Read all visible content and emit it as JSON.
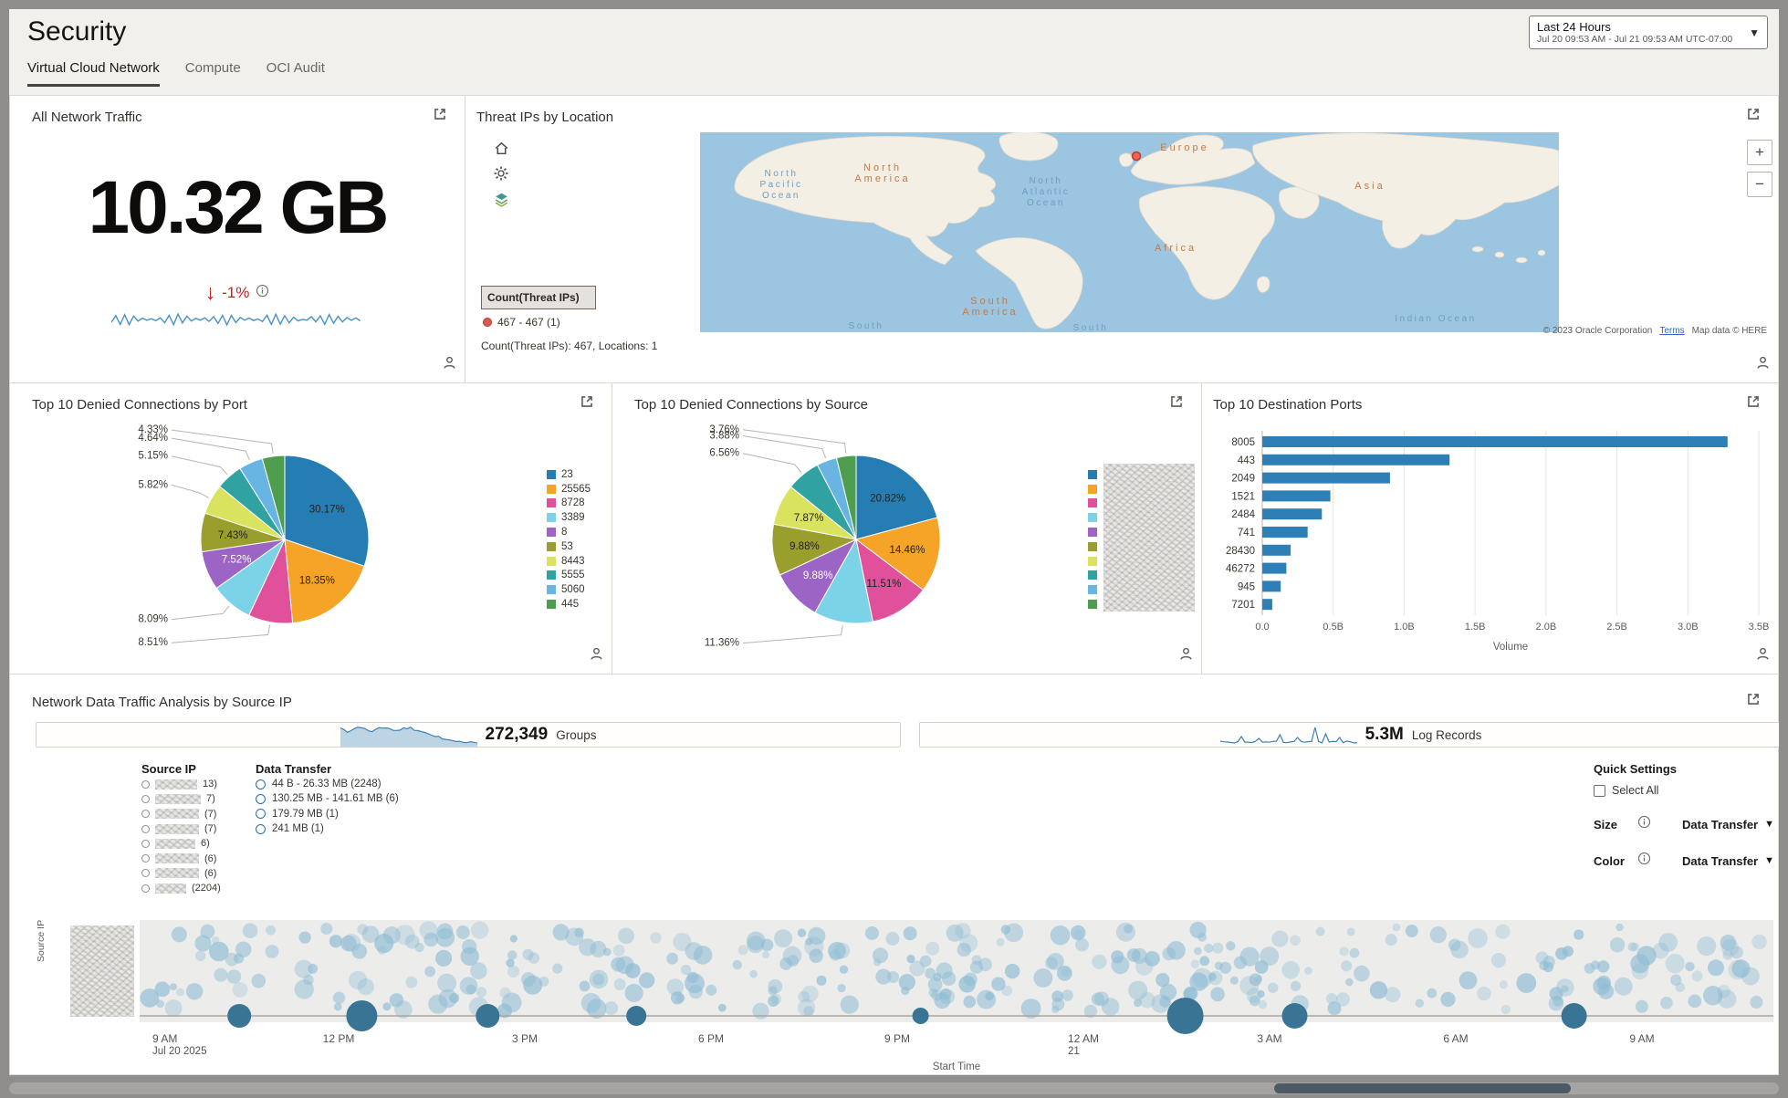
{
  "colors": {
    "accent_blue": "#2e7fb5",
    "pie_palette": [
      "#267db3",
      "#f5a427",
      "#e1509a",
      "#7cd2e7",
      "#9c64c4",
      "#999e2c",
      "#d9e35f",
      "#31a2a2",
      "#68b5e3",
      "#4f9e4f"
    ],
    "bar_color": "#2e7fb5",
    "spark_blue": "#3c82b0",
    "bubble_light": "#8fbcd4",
    "bubble_dark": "#3a7495",
    "negative_red": "#c5221f",
    "map_ocean": "#9cc5e2",
    "map_land": "#f3efe4"
  },
  "header": {
    "title": "Security",
    "time_range": {
      "label": "Last 24 Hours",
      "detail": "Jul 20 09:53 AM - Jul 21 09:53 AM UTC-07:00"
    }
  },
  "tabs": [
    {
      "label": "Virtual Cloud Network",
      "active": true
    },
    {
      "label": "Compute",
      "active": false
    },
    {
      "label": "OCI Audit",
      "active": false
    }
  ],
  "traffic_panel": {
    "title": "All Network Traffic",
    "value": "10.32 GB",
    "change": "-1%"
  },
  "map_panel": {
    "title": "Threat IPs by Location",
    "legend_title": "Count(Threat IPs)",
    "legend_item": "467 - 467 (1)",
    "summary": "Count(Threat IPs): 467, Locations: 1",
    "attribution": "© 2023 Oracle Corporation",
    "terms_link": "Terms",
    "map_data_credit": "Map data © HERE",
    "zoom_in": "+",
    "zoom_out": "−",
    "continent_labels": [
      "North America",
      "Europe",
      "Asia",
      "Africa",
      "South America"
    ],
    "ocean_labels": [
      "North Pacific Ocean",
      "North Atlantic Ocean",
      "Indian Ocean",
      "South",
      "South"
    ]
  },
  "analysis_panel": {
    "title": "Network Data Traffic Analysis by Source IP",
    "groups": {
      "value": "272,349",
      "label": "Groups"
    },
    "log_records": {
      "value": "5.3M",
      "label": "Log Records"
    },
    "source_ip": {
      "header": "Source IP",
      "items": [
        {
          "count": "13)"
        },
        {
          "count": "7)"
        },
        {
          "count": "(7)"
        },
        {
          "count": "(7)"
        },
        {
          "count": "6)"
        },
        {
          "count": "(6)"
        },
        {
          "count": "(6)"
        },
        {
          "count": "(2204)"
        }
      ]
    },
    "data_transfer": {
      "header": "Data Transfer",
      "options": [
        "44 B - 26.33 MB (2248)",
        "130.25 MB - 141.61 MB (6)",
        "179.79 MB (1)",
        "241 MB (1)"
      ]
    },
    "quick_settings": {
      "header": "Quick Settings",
      "select_all": "Select All",
      "size_label": "Size",
      "size_value": "Data Transfer",
      "color_label": "Color",
      "color_value": "Data Transfer"
    }
  },
  "chart_data": [
    {
      "id": "denied_by_port",
      "type": "pie",
      "title": "Top 10 Denied Connections by Port",
      "categories": [
        "23",
        "25565",
        "8728",
        "3389",
        "8",
        "53",
        "8443",
        "5555",
        "5060",
        "445"
      ],
      "values": [
        30.17,
        18.35,
        8.51,
        8.09,
        7.52,
        7.43,
        5.82,
        5.15,
        4.64,
        4.33
      ],
      "labels": [
        "30.17%",
        "18.35%",
        "8.51%",
        "8.09%",
        "7.52%",
        "7.43%",
        "5.82%",
        "5.15%",
        "4.64%",
        "4.33%"
      ],
      "label_inside": [
        true,
        true,
        false,
        false,
        true,
        true,
        false,
        false,
        false,
        false
      ],
      "legend_position": "right"
    },
    {
      "id": "denied_by_source",
      "type": "pie",
      "title": "Top 10 Denied Connections by Source",
      "legend_redacted": true,
      "values": [
        20.82,
        14.46,
        11.51,
        11.36,
        9.88,
        9.88,
        7.87,
        6.56,
        3.88,
        3.76
      ],
      "labels": [
        "20.82%",
        "14.46%",
        "11.51%",
        "11.36%",
        "9.88%",
        "9.88%",
        "7.87%",
        "6.56%",
        "3.88%",
        "3.76%"
      ],
      "label_inside": [
        true,
        true,
        true,
        false,
        true,
        true,
        true,
        false,
        false,
        false
      ],
      "legend_position": "right"
    },
    {
      "id": "dest_ports",
      "type": "bar",
      "title": "Top 10 Destination Ports",
      "orientation": "horizontal",
      "categories": [
        "8005",
        "443",
        "2049",
        "1521",
        "2484",
        "741",
        "28430",
        "46272",
        "945",
        "7201"
      ],
      "values_billions": [
        3.28,
        1.32,
        0.9,
        0.48,
        0.42,
        0.32,
        0.2,
        0.17,
        0.13,
        0.07
      ],
      "xlabel": "Volume",
      "x_ticks": [
        "0.0",
        "0.5B",
        "1.0B",
        "1.5B",
        "2.0B",
        "2.5B",
        "3.0B",
        "3.5B"
      ],
      "xlim": [
        0,
        3.5
      ]
    },
    {
      "id": "traffic_timeline",
      "type": "scatter",
      "xlabel": "Start Time",
      "ylabel": "Source IP",
      "x_ticks": [
        {
          "label": "9 AM",
          "sub": "Jul 20 2025"
        },
        {
          "label": "12 PM",
          "sub": ""
        },
        {
          "label": "3 PM",
          "sub": ""
        },
        {
          "label": "6 PM",
          "sub": ""
        },
        {
          "label": "9 PM",
          "sub": ""
        },
        {
          "label": "12 AM",
          "sub": "21"
        },
        {
          "label": "3 AM",
          "sub": ""
        },
        {
          "label": "6 AM",
          "sub": ""
        },
        {
          "label": "9 AM",
          "sub": ""
        }
      ],
      "highlight_bubbles": [
        {
          "x": 0.061,
          "r": 13
        },
        {
          "x": 0.136,
          "r": 17
        },
        {
          "x": 0.213,
          "r": 13
        },
        {
          "x": 0.304,
          "r": 11
        },
        {
          "x": 0.478,
          "r": 9
        },
        {
          "x": 0.64,
          "r": 20
        },
        {
          "x": 0.707,
          "r": 14
        },
        {
          "x": 0.878,
          "r": 14
        }
      ],
      "background_bubble_count": 340
    }
  ]
}
